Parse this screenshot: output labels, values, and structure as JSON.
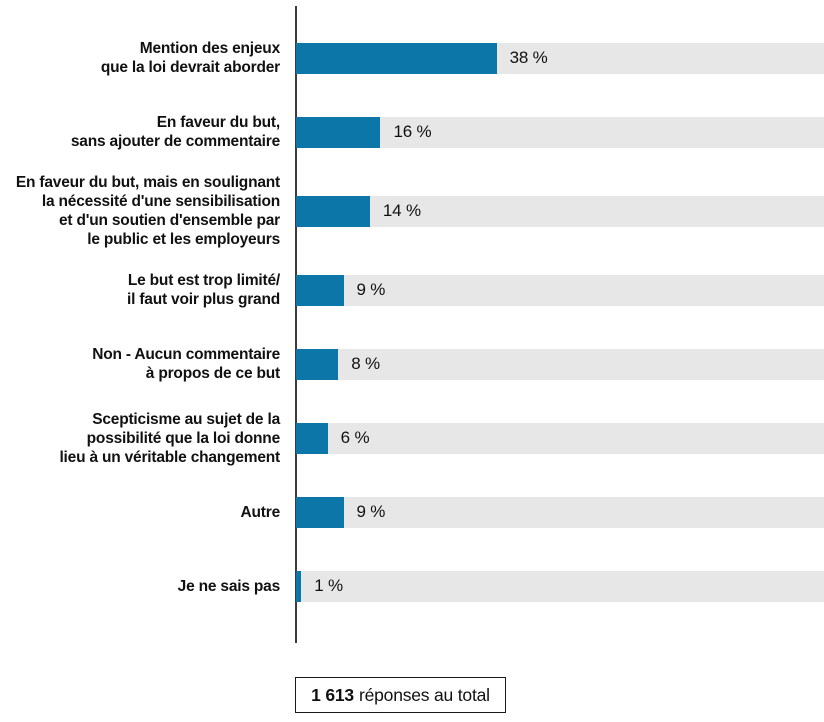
{
  "chart_data": {
    "type": "bar",
    "orientation": "horizontal",
    "title": "",
    "xlabel": "",
    "ylabel": "",
    "xlim": [
      0,
      100
    ],
    "grid": false,
    "legend": null,
    "categories": [
      [
        "Mention des enjeux",
        "que la loi devrait aborder"
      ],
      [
        "En faveur du but,",
        "sans ajouter de commentaire"
      ],
      [
        "En faveur du but, mais en soulignant",
        "la nécessité d'une sensibilisation",
        "et d'un soutien d'ensemble par",
        "le public et les employeurs"
      ],
      [
        "Le but est trop limité/",
        "il faut voir plus grand"
      ],
      [
        "Non - Aucun commentaire",
        "à propos de ce but"
      ],
      [
        "Scepticisme au sujet de la",
        "possibilité que la loi donne",
        "lieu à un véritable changement"
      ],
      [
        "Autre"
      ],
      [
        "Je ne sais pas"
      ]
    ],
    "values": [
      38,
      16,
      14,
      9,
      8,
      6,
      9,
      1
    ],
    "value_labels": [
      "38 %",
      "16 %",
      "14 %",
      "9 %",
      "8 %",
      "6 %",
      "9 %",
      "1 %"
    ]
  },
  "colors": {
    "bar": "#0c76a8",
    "track": "#e7e7e8",
    "axis": "#3c3c3c"
  },
  "footer": {
    "total_value": "1 613",
    "total_suffix": "réponses au total"
  }
}
